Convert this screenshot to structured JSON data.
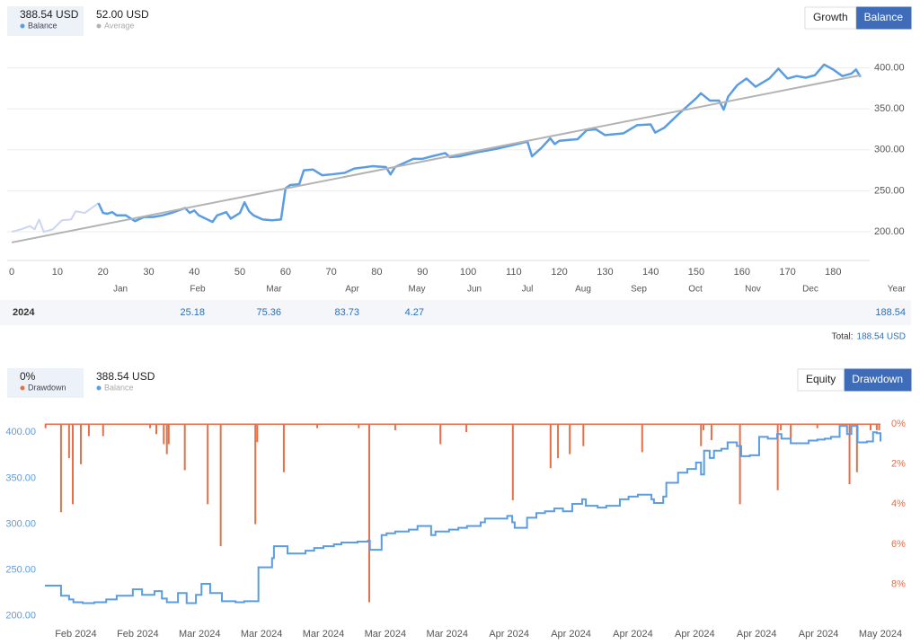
{
  "chart_data": [
    {
      "type": "line",
      "tabs": [
        "Growth",
        "Balance"
      ],
      "active_tab": 1,
      "xlim": [
        -1,
        188
      ],
      "xticks": [
        0,
        10,
        20,
        30,
        40,
        50,
        60,
        70,
        80,
        90,
        100,
        110,
        120,
        130,
        140,
        150,
        160,
        170,
        180
      ],
      "ylim": [
        165,
        428
      ],
      "yticks": [
        {
          "value": 200,
          "label": "200.00"
        },
        {
          "value": 250,
          "label": "250.00"
        },
        {
          "value": 300,
          "label": "300.00"
        },
        {
          "value": 350,
          "label": "350.00"
        },
        {
          "value": 400,
          "label": "400.00"
        }
      ],
      "grid": true,
      "series": [
        {
          "color": "#ccd5f0",
          "x": [
            0,
            2,
            4,
            5,
            6,
            7,
            9,
            11,
            13,
            14,
            16,
            18,
            19
          ],
          "values": [
            200,
            203,
            207,
            203,
            215,
            200,
            203,
            214,
            215,
            225,
            223,
            231,
            235
          ]
        },
        {
          "name": "Balance",
          "summary": "388.54 USD",
          "color": "#5b9de3",
          "x": [
            19,
            20,
            21,
            22,
            23,
            25,
            27,
            29,
            31,
            33,
            35,
            38,
            39,
            40,
            41,
            44,
            45,
            47,
            48,
            50,
            51,
            52,
            53,
            55,
            57,
            59,
            60,
            61,
            63,
            64,
            66,
            68,
            70,
            73,
            75,
            79,
            82,
            83,
            84,
            86,
            88,
            90,
            92,
            95,
            96,
            98,
            102,
            106,
            110,
            113,
            114,
            116,
            118,
            119,
            120,
            124,
            126,
            128,
            130,
            134,
            137,
            140,
            141,
            143,
            146,
            150,
            151,
            153,
            155,
            156,
            157,
            159,
            161,
            163,
            166,
            168,
            170,
            172,
            174,
            176,
            178,
            180,
            182,
            184,
            185,
            186
          ],
          "values": [
            235,
            223,
            222,
            224,
            220,
            220,
            213,
            218,
            218,
            220,
            223,
            229,
            223,
            226,
            220,
            212,
            220,
            224,
            216,
            223,
            236,
            225,
            220,
            215,
            214,
            215,
            253,
            257,
            258,
            275,
            276,
            269,
            270,
            272,
            277,
            280,
            279,
            270,
            279,
            284,
            289,
            289,
            292,
            296,
            291,
            292,
            297,
            301,
            306,
            310,
            292,
            302,
            314,
            307,
            311,
            313,
            324,
            325,
            318,
            320,
            330,
            331,
            321,
            327,
            343,
            363,
            369,
            360,
            360,
            349,
            365,
            379,
            387,
            377,
            387,
            399,
            387,
            390,
            388,
            391,
            404,
            398,
            390,
            393,
            398,
            389
          ]
        },
        {
          "name": "Average",
          "summary": "52.00 USD",
          "color": "#b3b3b3",
          "x": [
            0,
            186
          ],
          "values": [
            187,
            391
          ]
        }
      ]
    },
    {
      "type": "combo",
      "tabs": [
        "Equity",
        "Drawdown"
      ],
      "active_tab": 1,
      "xlim": [
        0,
        135
      ],
      "xticks": [
        {
          "value": 5,
          "label": "Feb 2024"
        },
        {
          "value": 15,
          "label": "Feb 2024"
        },
        {
          "value": 25,
          "label": "Mar 2024"
        },
        {
          "value": 35,
          "label": "Mar 2024"
        },
        {
          "value": 45,
          "label": "Mar 2024"
        },
        {
          "value": 55,
          "label": "Mar 2024"
        },
        {
          "value": 65,
          "label": "Mar 2024"
        },
        {
          "value": 75,
          "label": "Apr 2024"
        },
        {
          "value": 85,
          "label": "Apr 2024"
        },
        {
          "value": 95,
          "label": "Apr 2024"
        },
        {
          "value": 105,
          "label": "Apr 2024"
        },
        {
          "value": 115,
          "label": "Apr 2024"
        },
        {
          "value": 125,
          "label": "Apr 2024"
        },
        {
          "value": 135,
          "label": "May 2024"
        }
      ],
      "ylim": [
        191,
        411
      ],
      "yticks": [
        {
          "value": 200,
          "label": "200.00"
        },
        {
          "value": 250,
          "label": "250.00"
        },
        {
          "value": 300,
          "label": "300.00"
        },
        {
          "value": 350,
          "label": "350.00"
        },
        {
          "value": 400,
          "label": "400.00"
        }
      ],
      "y2lim": [
        10,
        -0.1
      ],
      "y2ticks": [
        {
          "value": 0,
          "label": "0%"
        },
        {
          "value": 2,
          "label": "2%"
        },
        {
          "value": 4,
          "label": "4%"
        },
        {
          "value": 6,
          "label": "6%"
        },
        {
          "value": 8,
          "label": "8%"
        }
      ],
      "series": [
        {
          "name": "Drawdown",
          "summary": "0%",
          "type": "bar",
          "axis": "y2",
          "color": "#e46f48",
          "x": [
            0.1,
            2.6,
            3.9,
            4.5,
            5.8,
            7.1,
            9.4,
            17,
            18,
            19.2,
            19.7,
            20,
            22.6,
            26.3,
            28.4,
            34,
            34.3,
            38.6,
            44,
            50.7,
            52.4,
            56.6,
            63.9,
            68.1,
            75.6,
            81.7,
            82.9,
            84.8,
            87,
            96.5,
            106,
            106.4,
            107.7,
            112.3,
            118.4,
            118.9,
            120.5,
            124.8,
            130,
            131.2,
            133.4,
            134.4,
            134.8
          ],
          "values": [
            0.2,
            4.4,
            1.7,
            4,
            2,
            0.6,
            0.6,
            0.2,
            0.5,
            1,
            1.5,
            1,
            2.3,
            4,
            6.1,
            5,
            0.9,
            2.4,
            0.2,
            0.2,
            8.9,
            0.3,
            1,
            0.4,
            3.8,
            2.2,
            1.7,
            1.5,
            1.1,
            1.4,
            1.1,
            0.3,
            0.8,
            4,
            3.3,
            0.3,
            0.7,
            0.2,
            3,
            2.4,
            0.3,
            0.3,
            0.3
          ]
        },
        {
          "name": "Balance",
          "summary": "388.54 USD",
          "type": "step",
          "color": "#5b9de3",
          "x": [
            0,
            2.6,
            3.9,
            4.6,
            6.1,
            8,
            9.9,
            11.6,
            14.2,
            15.7,
            17.7,
            18.9,
            19.7,
            21.5,
            22.9,
            24.4,
            25.3,
            26.7,
            28.6,
            30.8,
            32.2,
            34.5,
            36.7,
            37,
            39.2,
            42.1,
            43.5,
            45,
            46.7,
            47.9,
            50.5,
            52.2,
            52.5,
            54.4,
            55.2,
            56.6,
            58.8,
            60.2,
            62.4,
            63.1,
            65.3,
            66.8,
            68.2,
            70.4,
            71.1,
            74.7,
            75.5,
            75.9,
            77.9,
            79.4,
            80.8,
            82.3,
            83.7,
            85.2,
            86.8,
            87.4,
            89.3,
            90.7,
            92.9,
            94.3,
            95.8,
            98,
            98.4,
            99.9,
            100.4,
            102.3,
            103.8,
            105.2,
            106,
            106.5,
            107.4,
            108.1,
            109.3,
            110.3,
            111.8,
            112.5,
            113.9,
            115.4,
            116.8,
            118.3,
            119,
            120.5,
            123.4,
            124.8,
            126,
            127,
            128.4,
            129.6,
            130.3,
            131.3,
            132.8,
            133.8,
            134.4,
            135
          ],
          "values": [
            233,
            222,
            218,
            215,
            214,
            215,
            218,
            222,
            229,
            223,
            227,
            219,
            215,
            225,
            214,
            223,
            235,
            225,
            216,
            215,
            216,
            253,
            263,
            276,
            268,
            271,
            274,
            276,
            278,
            280,
            281,
            282,
            272,
            288,
            290,
            292,
            294,
            298,
            288,
            292,
            294,
            296,
            298,
            302,
            306,
            309,
            302,
            296,
            307,
            312,
            314,
            317,
            314,
            322,
            327,
            320,
            318,
            320,
            327,
            330,
            332,
            327,
            323,
            330,
            345,
            356,
            360,
            367,
            354,
            380,
            372,
            380,
            382,
            389,
            385,
            374,
            375,
            395,
            393,
            398,
            393,
            388,
            391,
            392,
            393,
            395,
            407,
            398,
            407,
            389,
            390,
            400,
            399,
            390
          ]
        }
      ]
    }
  ],
  "year_table": {
    "columns": [
      "Jan",
      "Feb",
      "Mar",
      "Apr",
      "May",
      "Jun",
      "Jul",
      "Aug",
      "Sep",
      "Oct",
      "Nov",
      "Dec",
      "Year"
    ],
    "rows": [
      {
        "label": "2024",
        "values": [
          null,
          25.18,
          75.36,
          83.73,
          4.27,
          null,
          null,
          null,
          null,
          null,
          null,
          null,
          188.54
        ]
      }
    ],
    "total_label": "Total:",
    "total": "188.54 USD"
  }
}
